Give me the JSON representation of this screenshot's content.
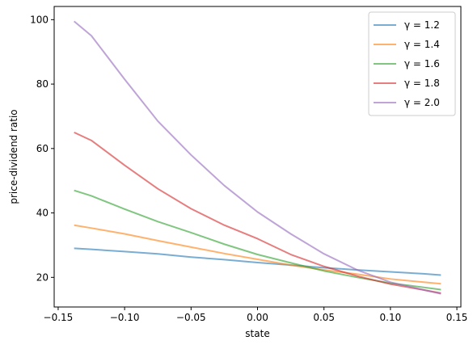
{
  "chart_data": {
    "type": "line",
    "title": "",
    "xlabel": "state",
    "ylabel": "price-dividend ratio",
    "xlim": [
      -0.153,
      0.153
    ],
    "ylim": [
      10.8,
      104.1
    ],
    "xticks": [
      {
        "value": -0.15,
        "label": "−0.15"
      },
      {
        "value": -0.1,
        "label": "−0.10"
      },
      {
        "value": -0.05,
        "label": "−0.05"
      },
      {
        "value": 0.0,
        "label": "0.00"
      },
      {
        "value": 0.05,
        "label": "0.05"
      },
      {
        "value": 0.1,
        "label": "0.10"
      },
      {
        "value": 0.15,
        "label": "0.15"
      }
    ],
    "yticks": [
      {
        "value": 20,
        "label": "20"
      },
      {
        "value": 40,
        "label": "40"
      },
      {
        "value": 60,
        "label": "60"
      },
      {
        "value": 80,
        "label": "80"
      },
      {
        "value": 100,
        "label": "100"
      }
    ],
    "grid": false,
    "legend_position": "top-right",
    "x": [
      -0.138,
      -0.125,
      -0.1,
      -0.075,
      -0.05,
      -0.025,
      0.0,
      0.025,
      0.05,
      0.075,
      0.1,
      0.125,
      0.138
    ],
    "series": [
      {
        "name": "γ = 1.2",
        "color": "#1f77b4",
        "values": [
          29.0,
          28.7,
          28.0,
          27.3,
          26.3,
          25.5,
          24.6,
          23.8,
          23.0,
          22.3,
          21.7,
          21.1,
          20.7
        ]
      },
      {
        "name": "γ = 1.4",
        "color": "#ff7f0e",
        "values": [
          36.2,
          35.3,
          33.5,
          31.4,
          29.4,
          27.4,
          25.6,
          23.8,
          22.3,
          21.0,
          19.5,
          18.5,
          18.0
        ]
      },
      {
        "name": "γ = 1.6",
        "color": "#2ca02c",
        "values": [
          47.0,
          45.3,
          41.2,
          37.3,
          33.9,
          30.3,
          27.1,
          24.5,
          22.0,
          20.0,
          18.2,
          16.9,
          16.2
        ]
      },
      {
        "name": "γ = 1.8",
        "color": "#d62728",
        "values": [
          65.0,
          62.5,
          54.8,
          47.5,
          41.3,
          36.2,
          32.0,
          27.1,
          23.4,
          20.4,
          17.9,
          16.1,
          15.1
        ]
      },
      {
        "name": "γ = 2.0",
        "color": "#9467bd",
        "values": [
          99.5,
          95.0,
          81.5,
          68.5,
          58.0,
          48.5,
          40.3,
          33.5,
          27.3,
          22.3,
          18.5,
          16.1,
          14.9
        ]
      }
    ]
  }
}
